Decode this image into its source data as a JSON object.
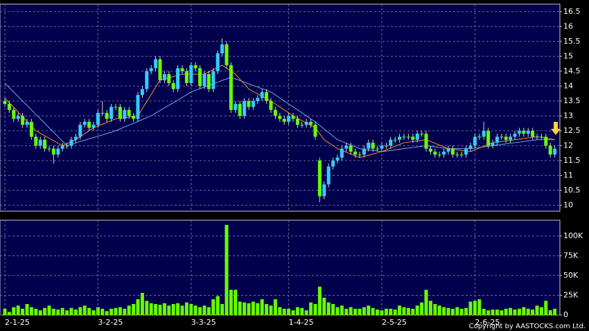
{
  "chart_data": {
    "type": "candlestick",
    "categories": [
      "2-1-25",
      null,
      null,
      null,
      null,
      null,
      null,
      null,
      null,
      null,
      null,
      null,
      null,
      null,
      null,
      null,
      null,
      null,
      null,
      null,
      null,
      "3-2-25",
      null,
      null,
      null,
      null,
      null,
      null,
      null,
      null,
      null,
      null,
      null,
      null,
      null,
      null,
      null,
      null,
      null,
      null,
      null,
      null,
      "3-3-25",
      null,
      null,
      null,
      null,
      null,
      null,
      null,
      null,
      null,
      null,
      null,
      null,
      null,
      null,
      null,
      null,
      null,
      null,
      null,
      null,
      null,
      "1-4-25",
      null,
      null,
      null,
      null,
      null,
      null,
      null,
      null,
      null,
      null,
      null,
      null,
      null,
      null,
      null,
      null,
      null,
      null,
      null,
      null,
      "2-5-25",
      null,
      null,
      null,
      null,
      null,
      null,
      null,
      null,
      null,
      null,
      null,
      null,
      null,
      null,
      null,
      null,
      null,
      null,
      null,
      null,
      "2-6-25",
      null,
      null,
      null,
      null,
      null,
      null,
      null,
      null,
      null,
      null,
      null,
      null,
      null,
      null,
      null,
      null,
      null,
      null
    ],
    "open": [
      13.5,
      13.4,
      13.2,
      12.9,
      13.0,
      12.7,
      12.8,
      12.3,
      12.0,
      12.2,
      11.9,
      11.9,
      11.7,
      11.9,
      12.0,
      12.0,
      12.2,
      12.3,
      12.7,
      12.8,
      12.6,
      12.7,
      13.1,
      13.1,
      12.9,
      13.3,
      13.3,
      12.9,
      13.2,
      13.0,
      12.9,
      13.7,
      13.9,
      14.5,
      14.6,
      14.9,
      14.2,
      14.4,
      14.1,
      13.9,
      14.6,
      14.5,
      14.1,
      14.7,
      14.6,
      14.0,
      14.4,
      13.9,
      14.5,
      15.1,
      15.4,
      14.7,
      13.2,
      13.4,
      13.0,
      13.5,
      13.3,
      13.5,
      13.6,
      13.8,
      13.5,
      13.2,
      13.0,
      12.9,
      12.8,
      13.0,
      12.9,
      12.7,
      12.7,
      12.8,
      12.7,
      11.5,
      10.3,
      10.7,
      11.3,
      11.5,
      11.6,
      11.9,
      12.0,
      11.8,
      11.7,
      11.7,
      11.9,
      12.1,
      11.9,
      11.9,
      12.0,
      12.0,
      12.2,
      12.2,
      12.3,
      12.3,
      12.3,
      12.2,
      12.4,
      12.4,
      11.9,
      11.8,
      11.7,
      11.7,
      11.8,
      11.9,
      11.7,
      11.7,
      11.7,
      11.9,
      12.0,
      12.3,
      12.3,
      12.5,
      12.0,
      12.1,
      12.3,
      12.3,
      12.2,
      12.3,
      12.4,
      12.5,
      12.4,
      12.5,
      12.3,
      12.3,
      12.3,
      12.0,
      11.7
    ],
    "high": [
      13.6,
      13.5,
      13.3,
      13.1,
      13.1,
      12.9,
      12.9,
      12.4,
      12.3,
      12.3,
      12.0,
      12.0,
      12.0,
      12.1,
      12.1,
      12.3,
      12.4,
      12.8,
      12.9,
      12.9,
      12.8,
      13.2,
      13.5,
      13.2,
      13.4,
      13.4,
      13.4,
      13.3,
      13.3,
      13.1,
      13.8,
      14.0,
      14.6,
      14.7,
      15.0,
      15.0,
      14.5,
      14.5,
      14.2,
      14.7,
      14.7,
      14.6,
      14.8,
      14.8,
      14.7,
      14.5,
      14.5,
      14.6,
      15.2,
      15.6,
      15.5,
      14.8,
      13.5,
      13.5,
      13.6,
      13.6,
      13.6,
      13.7,
      13.9,
      13.9,
      13.6,
      13.3,
      13.1,
      13.0,
      13.1,
      13.1,
      13.0,
      12.8,
      12.9,
      12.9,
      12.8,
      11.6,
      10.8,
      11.4,
      11.6,
      11.7,
      12.0,
      12.1,
      12.1,
      11.9,
      11.8,
      12.0,
      12.2,
      12.2,
      12.0,
      12.1,
      12.1,
      12.3,
      12.3,
      12.4,
      12.4,
      12.4,
      12.4,
      12.5,
      12.5,
      12.5,
      12.0,
      11.9,
      11.8,
      11.9,
      12.0,
      12.0,
      11.8,
      11.8,
      12.0,
      12.1,
      12.4,
      12.4,
      12.8,
      12.6,
      12.2,
      12.4,
      12.4,
      12.4,
      12.4,
      12.5,
      12.6,
      12.6,
      12.6,
      12.6,
      12.4,
      12.4,
      12.4,
      12.1,
      12.0
    ],
    "low": [
      13.3,
      13.1,
      12.8,
      12.8,
      12.6,
      12.6,
      12.2,
      11.9,
      11.9,
      11.8,
      11.8,
      11.4,
      11.6,
      11.8,
      11.9,
      11.9,
      12.1,
      12.2,
      12.6,
      12.5,
      12.5,
      12.6,
      13.0,
      12.8,
      12.8,
      13.2,
      12.8,
      12.8,
      12.9,
      12.8,
      12.8,
      13.6,
      13.8,
      14.4,
      14.5,
      14.1,
      14.1,
      14.0,
      13.8,
      13.8,
      14.4,
      14.0,
      14.0,
      14.5,
      13.9,
      13.9,
      13.8,
      13.8,
      14.4,
      15.0,
      14.6,
      13.1,
      13.1,
      12.9,
      12.9,
      13.2,
      13.2,
      13.4,
      13.5,
      13.4,
      13.1,
      12.9,
      12.8,
      12.7,
      12.7,
      12.8,
      12.6,
      12.6,
      12.6,
      12.6,
      12.2,
      10.1,
      10.2,
      10.6,
      11.2,
      11.4,
      11.5,
      11.8,
      11.7,
      11.6,
      11.6,
      11.6,
      11.8,
      11.8,
      11.8,
      11.8,
      11.9,
      11.9,
      12.1,
      12.1,
      12.2,
      12.2,
      12.1,
      12.1,
      12.3,
      11.8,
      11.7,
      11.6,
      11.6,
      11.6,
      11.7,
      11.6,
      11.6,
      11.6,
      11.6,
      11.8,
      11.9,
      12.2,
      12.2,
      11.9,
      11.9,
      12.0,
      12.2,
      12.1,
      12.1,
      12.2,
      12.3,
      12.3,
      12.3,
      12.2,
      12.2,
      12.2,
      11.9,
      11.6,
      11.6
    ],
    "close": [
      13.4,
      13.2,
      12.9,
      13.0,
      12.7,
      12.8,
      12.3,
      12.0,
      12.2,
      11.9,
      11.9,
      11.7,
      11.9,
      12.0,
      12.0,
      12.2,
      12.3,
      12.7,
      12.8,
      12.6,
      12.7,
      13.1,
      13.1,
      12.9,
      13.3,
      13.3,
      12.9,
      13.2,
      13.0,
      12.9,
      13.7,
      13.9,
      14.5,
      14.6,
      14.9,
      14.2,
      14.4,
      14.1,
      13.9,
      14.6,
      14.5,
      14.1,
      14.7,
      14.6,
      14.0,
      14.4,
      13.9,
      14.5,
      15.1,
      15.4,
      14.7,
      13.2,
      13.4,
      13.0,
      13.5,
      13.3,
      13.5,
      13.6,
      13.8,
      13.5,
      13.2,
      13.0,
      12.9,
      12.8,
      13.0,
      12.9,
      12.7,
      12.7,
      12.8,
      12.7,
      12.3,
      10.3,
      10.7,
      11.3,
      11.5,
      11.6,
      11.9,
      12.0,
      11.8,
      11.7,
      11.7,
      11.9,
      12.1,
      11.9,
      11.9,
      12.0,
      12.0,
      12.2,
      12.2,
      12.3,
      12.3,
      12.3,
      12.2,
      12.4,
      12.4,
      11.9,
      11.8,
      11.7,
      11.7,
      11.8,
      11.9,
      11.7,
      11.7,
      11.7,
      11.9,
      12.0,
      12.3,
      12.3,
      12.5,
      12.0,
      12.1,
      12.3,
      12.3,
      12.2,
      12.3,
      12.4,
      12.5,
      12.4,
      12.5,
      12.3,
      12.3,
      12.3,
      12.0,
      11.7,
      11.9
    ],
    "up_color": "#33ccff",
    "down_color": "#66ff00",
    "series": [
      {
        "color": "#6fa8e8",
        "values": [
          14.1,
          13.95,
          13.8,
          13.65,
          13.5,
          13.35,
          13.2,
          13.05,
          12.9,
          12.75,
          12.6,
          12.45,
          12.3,
          12.15,
          12.0,
          12.05,
          12.09,
          12.14,
          12.18,
          12.23,
          12.27,
          12.32,
          12.36,
          12.41,
          12.45,
          12.5,
          12.56,
          12.63,
          12.69,
          12.75,
          12.81,
          12.88,
          12.94,
          13.0,
          13.09,
          13.18,
          13.27,
          13.36,
          13.44,
          13.53,
          13.62,
          13.71,
          13.8,
          13.86,
          13.91,
          13.97,
          14.02,
          14.08,
          14.13,
          14.19,
          14.24,
          14.3,
          14.24,
          14.19,
          14.13,
          14.08,
          14.02,
          13.97,
          13.91,
          13.86,
          13.8,
          13.7,
          13.6,
          13.5,
          13.4,
          13.3,
          13.2,
          13.1,
          13.0,
          12.9,
          12.8,
          12.68,
          12.56,
          12.44,
          12.32,
          12.2,
          12.14,
          12.08,
          12.02,
          11.96,
          11.9,
          11.88,
          11.86,
          11.84,
          11.82,
          11.8,
          11.82,
          11.84,
          11.86,
          11.88,
          11.9,
          11.92,
          11.94,
          11.96,
          11.98,
          12.0,
          11.98,
          11.96,
          11.94,
          11.92,
          11.9,
          11.9,
          11.9,
          11.9,
          11.9,
          11.9,
          11.92,
          11.94,
          11.96,
          11.98,
          12.0,
          12.02,
          12.04,
          12.06,
          12.08,
          12.1,
          12.12,
          12.14,
          12.16,
          12.18,
          12.2,
          12.2,
          12.2,
          12.2,
          12.2
        ]
      },
      {
        "color": "#ff8c1a",
        "values": [
          13.6,
          13.44,
          13.29,
          13.13,
          12.97,
          12.81,
          12.66,
          12.5,
          12.42,
          12.33,
          12.25,
          12.17,
          12.08,
          12.0,
          12.07,
          12.13,
          12.2,
          12.3,
          12.4,
          12.5,
          12.6,
          12.66,
          12.72,
          12.78,
          12.84,
          12.9,
          12.92,
          12.94,
          12.96,
          12.98,
          13.0,
          13.24,
          13.48,
          13.72,
          13.96,
          14.2,
          14.24,
          14.28,
          14.32,
          14.36,
          14.4,
          14.4,
          14.4,
          14.4,
          14.4,
          14.4,
          14.48,
          14.55,
          14.63,
          14.7,
          14.6,
          14.5,
          14.4,
          14.23,
          14.07,
          13.9,
          13.82,
          13.74,
          13.66,
          13.58,
          13.5,
          13.4,
          13.3,
          13.2,
          13.1,
          13.0,
          12.92,
          12.84,
          12.76,
          12.68,
          12.6,
          12.4,
          12.2,
          12.1,
          12.0,
          11.9,
          11.84,
          11.78,
          11.72,
          11.66,
          11.6,
          11.64,
          11.68,
          11.72,
          11.76,
          11.8,
          11.86,
          11.92,
          11.98,
          12.04,
          12.1,
          12.12,
          12.14,
          12.16,
          12.18,
          12.2,
          12.14,
          12.08,
          12.02,
          11.96,
          11.9,
          11.88,
          11.86,
          11.84,
          11.82,
          11.8,
          11.86,
          11.92,
          11.98,
          12.04,
          12.1,
          12.12,
          12.14,
          12.16,
          12.18,
          12.2,
          12.22,
          12.24,
          12.26,
          12.28,
          12.3,
          12.28,
          12.25,
          12.23,
          12.2
        ]
      }
    ],
    "ylim": [
      9.8,
      16.75
    ],
    "yticks": [
      10,
      10.5,
      11,
      11.5,
      12,
      12.5,
      13,
      13.5,
      14,
      14.5,
      15,
      15.5,
      16,
      16.5
    ],
    "grid": true,
    "volume": {
      "type": "bar",
      "color": "#66ff00",
      "values": [
        8000,
        4000,
        10000,
        12000,
        8000,
        14000,
        10000,
        8000,
        6000,
        9000,
        12000,
        8000,
        7000,
        9000,
        6000,
        9000,
        7000,
        10000,
        12000,
        9000,
        6000,
        10000,
        8000,
        5000,
        8000,
        9000,
        10000,
        8000,
        12000,
        14000,
        20000,
        28000,
        18000,
        15000,
        14000,
        13000,
        15000,
        12000,
        14000,
        15000,
        12000,
        16000,
        14000,
        12000,
        10000,
        12000,
        10000,
        20000,
        24000,
        14000,
        114000,
        32000,
        32000,
        17000,
        16000,
        15000,
        17000,
        15000,
        20000,
        14000,
        12000,
        20000,
        10000,
        8000,
        8000,
        6000,
        10000,
        9000,
        6000,
        16000,
        14000,
        36000,
        22000,
        16000,
        14000,
        10000,
        12000,
        8000,
        10000,
        8000,
        8000,
        10000,
        12000,
        9000,
        7000,
        6000,
        8000,
        8000,
        7000,
        12000,
        10000,
        9000,
        8000,
        12000,
        16000,
        32000,
        18000,
        14000,
        12000,
        10000,
        9000,
        8000,
        10000,
        8000,
        9000,
        17000,
        18000,
        20000,
        8000,
        6000,
        7000,
        7000,
        6000,
        8000,
        9000,
        7000,
        8000,
        10000,
        8000,
        7000,
        12000,
        10000,
        18000,
        6000,
        8000
      ],
      "ylim": [
        0,
        120000
      ],
      "yticks": [
        0,
        {
          "value": 25000,
          "label": "25K"
        },
        {
          "value": 50000,
          "label": "50K"
        },
        {
          "value": 75000,
          "label": "75K"
        },
        {
          "value": 100000,
          "label": "100K"
        }
      ]
    },
    "copyright": "Copyright by AASTOCKS.com Ltd."
  }
}
